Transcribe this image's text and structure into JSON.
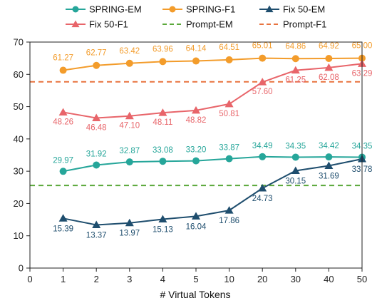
{
  "chart_data": {
    "type": "line",
    "xlabel": "# Virtual Tokens",
    "ylabel": "",
    "categories": [
      "1",
      "2",
      "3",
      "4",
      "5",
      "10",
      "20",
      "30",
      "40",
      "50"
    ],
    "x_axis_extra_tick": "0",
    "ylim": [
      0,
      70
    ],
    "yticks": [
      "0",
      "10",
      "20",
      "30",
      "40",
      "50",
      "60",
      "70"
    ],
    "grid": false,
    "legend_position": "top",
    "series": [
      {
        "name": "SPRING-EM",
        "color": "#26a69a",
        "marker": "circle",
        "values": [
          29.97,
          31.92,
          32.87,
          33.08,
          33.2,
          33.87,
          34.49,
          34.35,
          34.42,
          34.35
        ],
        "labels": [
          "29.97",
          "31.92",
          "32.87",
          "33.08",
          "33.20",
          "33.87",
          "34.49",
          "34.35",
          "34.42",
          "34.35"
        ]
      },
      {
        "name": "SPRING-F1",
        "color": "#f39c2b",
        "marker": "circle",
        "values": [
          61.27,
          62.77,
          63.42,
          63.96,
          64.14,
          64.51,
          65.01,
          64.86,
          64.92,
          65.0
        ],
        "labels": [
          "61.27",
          "62.77",
          "63.42",
          "63.96",
          "64.14",
          "64.51",
          "65.01",
          "64.86",
          "64.92",
          "65.00"
        ]
      },
      {
        "name": "Fix 50-EM",
        "color": "#1f4e6e",
        "marker": "triangle",
        "values": [
          15.39,
          13.37,
          13.97,
          15.13,
          16.04,
          17.86,
          24.73,
          30.15,
          31.69,
          33.78
        ],
        "labels": [
          "15.39",
          "13.37",
          "13.97",
          "15.13",
          "16.04",
          "17.86",
          "24.73",
          "30.15",
          "31.69",
          "33.78"
        ]
      },
      {
        "name": "Fix 50-F1",
        "color": "#e8656a",
        "marker": "triangle",
        "values": [
          48.26,
          46.48,
          47.1,
          48.11,
          48.82,
          50.81,
          57.6,
          61.25,
          62.08,
          63.29
        ],
        "labels": [
          "48.26",
          "46.48",
          "47.10",
          "48.11",
          "48.82",
          "50.81",
          "57.60",
          "61.25",
          "62.08",
          "63.29"
        ]
      },
      {
        "name": "Prompt-EM",
        "color": "#5aa83a",
        "style": "dashed",
        "constant": 25.6
      },
      {
        "name": "Prompt-F1",
        "color": "#e8733f",
        "style": "dashed",
        "constant": 57.7
      }
    ]
  }
}
